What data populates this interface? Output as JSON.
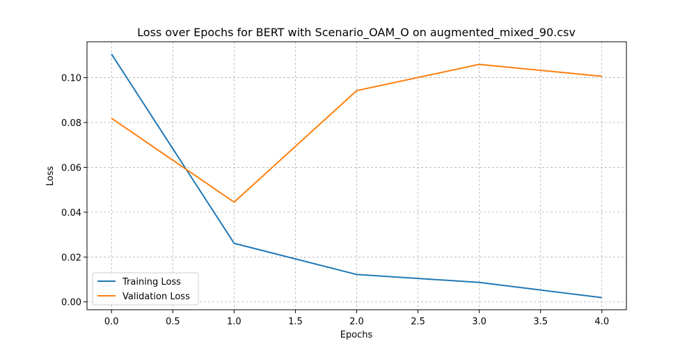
{
  "chart_data": {
    "type": "line",
    "title": "Loss over Epochs for BERT with Scenario_OAM_O on augmented_mixed_90.csv",
    "xlabel": "Epochs",
    "ylabel": "Loss",
    "x": [
      0,
      1,
      2,
      3,
      4
    ],
    "xlim": [
      -0.2,
      4.2
    ],
    "ylim": [
      -0.0035,
      0.116
    ],
    "xticks": [
      "0.0",
      "0.5",
      "1.0",
      "1.5",
      "2.0",
      "2.5",
      "3.0",
      "3.5",
      "4.0"
    ],
    "yticks": [
      "0.00",
      "0.02",
      "0.04",
      "0.06",
      "0.08",
      "0.10"
    ],
    "grid": true,
    "legend_position": "lower-left",
    "series": [
      {
        "name": "Training Loss",
        "color": "#1f77b4",
        "values": [
          0.1105,
          0.0261,
          0.0122,
          0.0087,
          0.0019
        ]
      },
      {
        "name": "Validation Loss",
        "color": "#ff7f0e",
        "values": [
          0.0819,
          0.0445,
          0.0942,
          0.1059,
          0.1006
        ]
      }
    ]
  }
}
